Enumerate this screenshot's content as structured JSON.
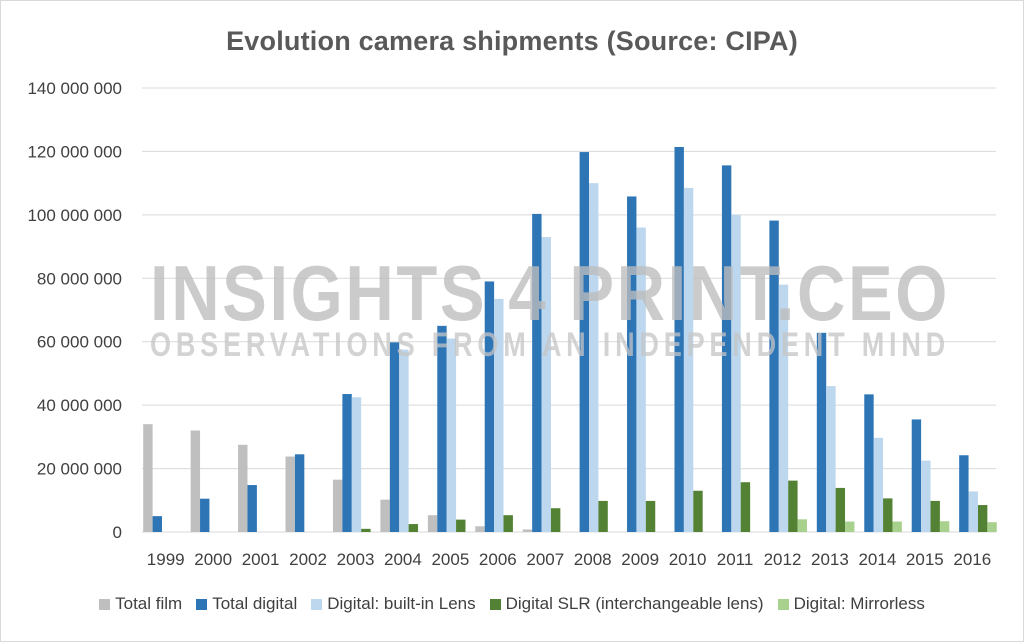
{
  "chart_data": {
    "type": "bar",
    "title": "Evolution camera shipments (Source: CIPA)",
    "xlabel": "",
    "ylabel": "",
    "ylim": [
      0,
      140000000
    ],
    "yticks": [
      0,
      20000000,
      40000000,
      60000000,
      80000000,
      100000000,
      120000000,
      140000000
    ],
    "ytick_labels": [
      "0",
      "20 000 000",
      "40 000 000",
      "60 000 000",
      "80 000 000",
      "100 000 000",
      "120 000 000",
      "140 000 000"
    ],
    "grid": true,
    "legend_position": "bottom",
    "categories": [
      "1999",
      "2000",
      "2001",
      "2002",
      "2003",
      "2004",
      "2005",
      "2006",
      "2007",
      "2008",
      "2009",
      "2010",
      "2011",
      "2012",
      "2013",
      "2014",
      "2015",
      "2016"
    ],
    "series": [
      {
        "name": "Total film",
        "color": "#bfbfbf",
        "values": [
          34000000,
          32000000,
          27500000,
          23800000,
          16500000,
          10200000,
          5300000,
          1800000,
          800000,
          0,
          0,
          0,
          0,
          0,
          0,
          0,
          0,
          0
        ]
      },
      {
        "name": "Total digital",
        "color": "#2e75b6",
        "values": [
          5000000,
          10500000,
          14800000,
          24500000,
          43500000,
          59800000,
          65000000,
          79000000,
          100300000,
          119800000,
          105800000,
          121400000,
          115600000,
          98200000,
          62800000,
          43400000,
          35500000,
          24200000
        ]
      },
      {
        "name": "Digital: built-in Lens",
        "color": "#bdd7ee",
        "values": [
          0,
          0,
          0,
          0,
          42500000,
          57500000,
          61000000,
          73500000,
          93000000,
          110000000,
          96000000,
          108500000,
          100000000,
          78000000,
          46000000,
          29700000,
          22500000,
          12800000
        ]
      },
      {
        "name": "Digital SLR (interchangeable lens)",
        "color": "#548235",
        "values": [
          0,
          0,
          0,
          0,
          1000000,
          2500000,
          3900000,
          5300000,
          7500000,
          9800000,
          9800000,
          13000000,
          15700000,
          16200000,
          13900000,
          10600000,
          9800000,
          8500000
        ]
      },
      {
        "name": "Digital: Mirrorless",
        "color": "#a9d18e",
        "values": [
          0,
          0,
          0,
          0,
          0,
          0,
          0,
          0,
          0,
          0,
          0,
          0,
          0,
          4000000,
          3300000,
          3300000,
          3400000,
          3100000
        ]
      }
    ]
  },
  "watermark": {
    "line1": "INSIGHTS 4 PRINT.CEO",
    "line2": "OBSERVATIONS FROM AN INDEPENDENT MIND"
  }
}
